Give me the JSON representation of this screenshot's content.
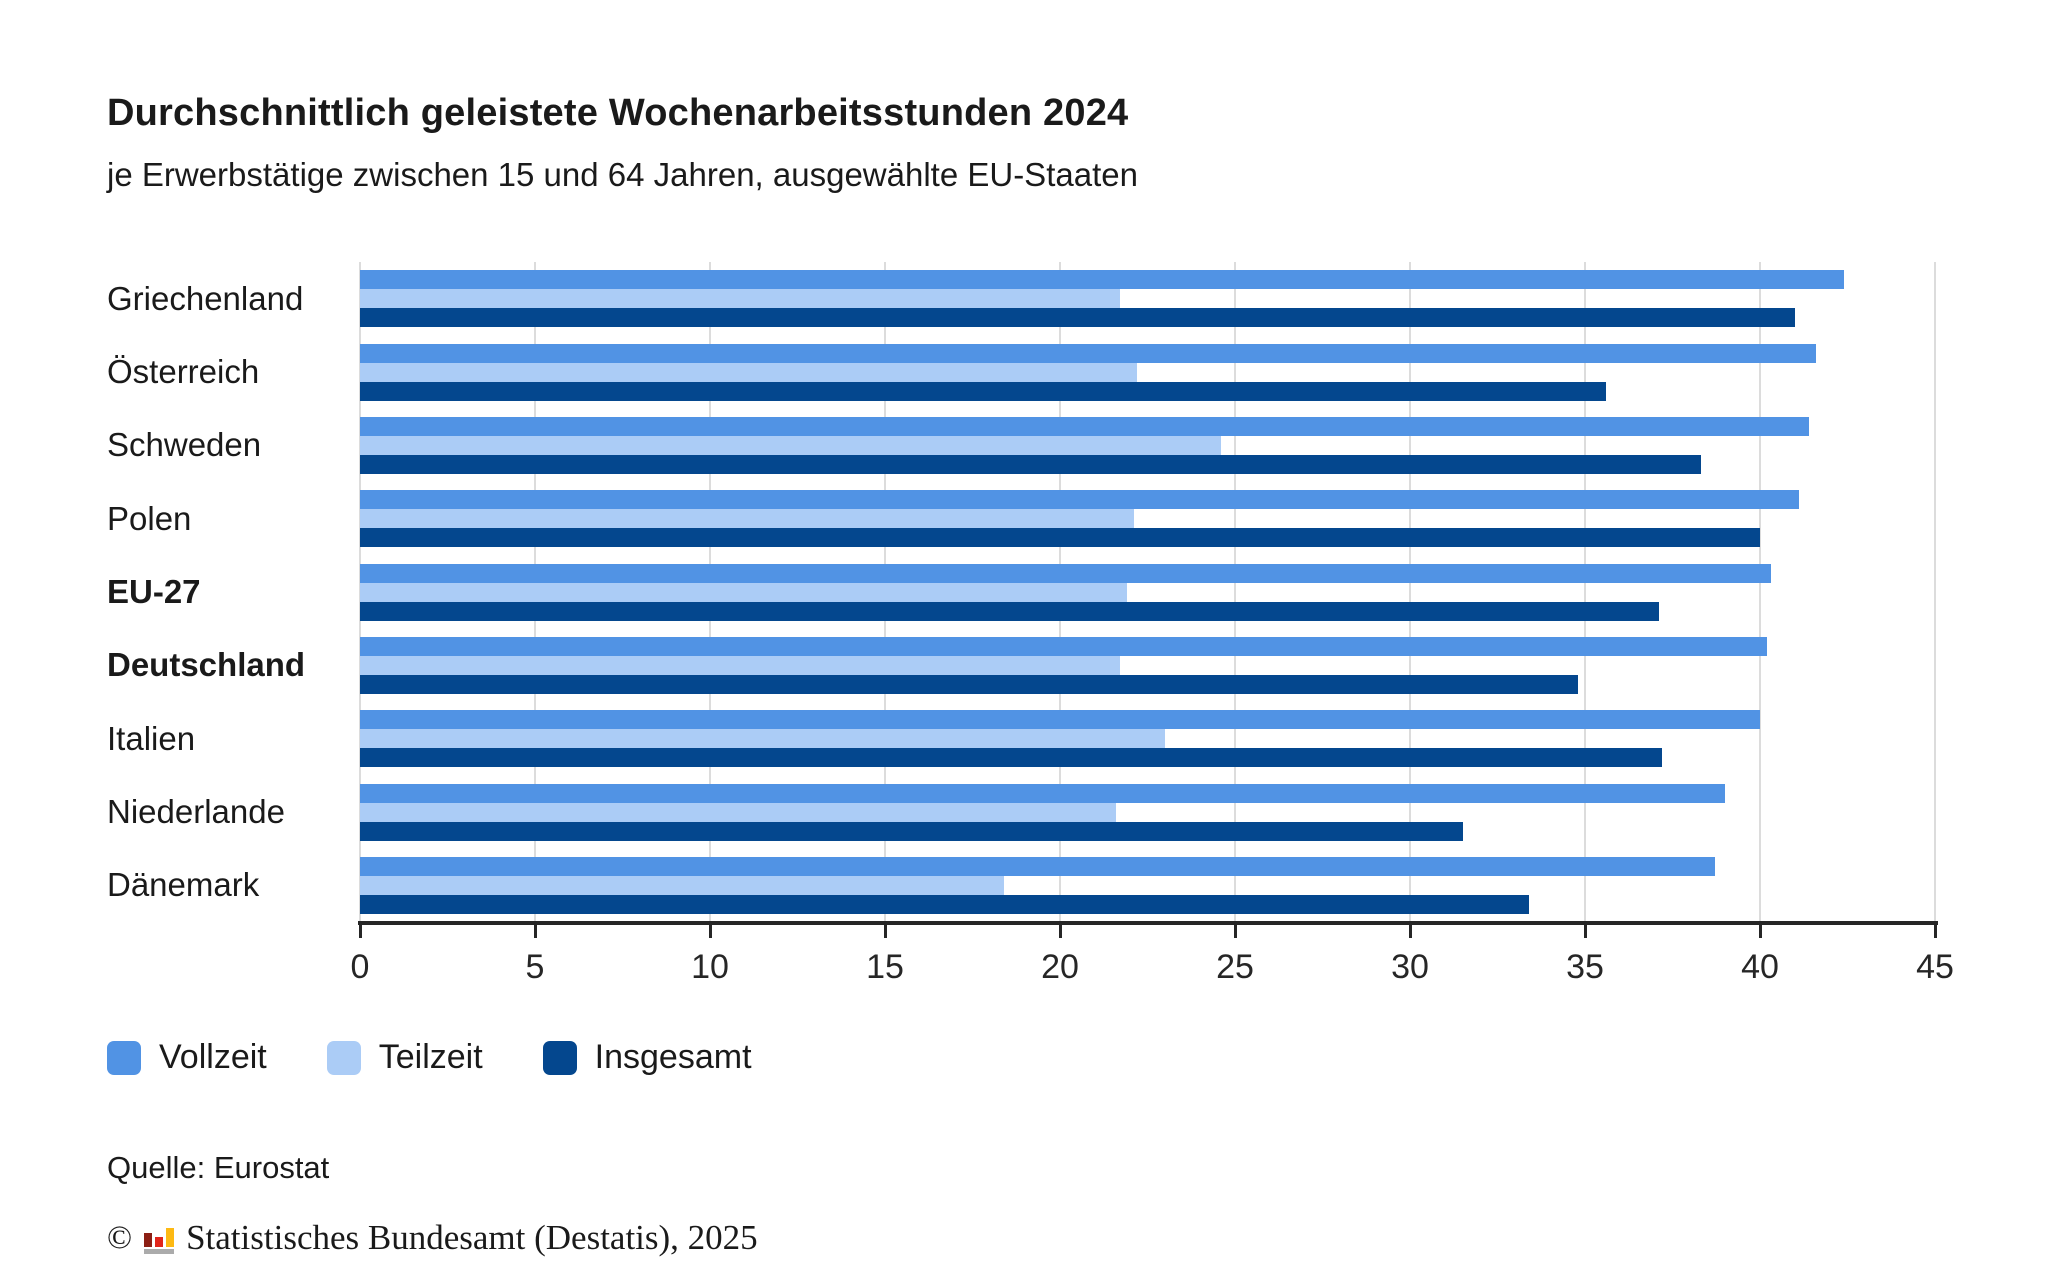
{
  "header": {
    "title": "Durchschnittlich geleistete Wochenarbeitsstunden 2024",
    "subtitle": "je Erwerbstätige zwischen 15 und 64 Jahren, ausgewählte EU-Staaten"
  },
  "chart_data": {
    "type": "bar",
    "orientation": "horizontal",
    "title": "Durchschnittlich geleistete Wochenarbeitsstunden 2024",
    "subtitle": "je Erwerbstätige zwischen 15 und 64 Jahren, ausgewählte EU-Staaten",
    "categories": [
      "Griechenland",
      "Österreich",
      "Schweden",
      "Polen",
      "EU-27",
      "Deutschland",
      "Italien",
      "Niederlande",
      "Dänemark"
    ],
    "bold_categories": [
      "EU-27",
      "Deutschland"
    ],
    "series": [
      {
        "name": "Vollzeit",
        "color": "#5193E4",
        "values": [
          42.4,
          41.6,
          41.4,
          41.1,
          40.3,
          40.2,
          40.0,
          39.0,
          38.7
        ]
      },
      {
        "name": "Teilzeit",
        "color": "#ABCCF6",
        "values": [
          21.7,
          22.2,
          24.6,
          22.1,
          21.9,
          21.7,
          23.0,
          21.6,
          18.4
        ]
      },
      {
        "name": "Insgesamt",
        "color": "#04478E",
        "values": [
          41.0,
          35.6,
          38.3,
          40.0,
          37.1,
          34.8,
          37.2,
          31.5,
          33.4
        ]
      }
    ],
    "xlabel": "",
    "ylabel": "",
    "xlim": [
      0,
      45
    ],
    "xticks": [
      0,
      5,
      10,
      15,
      20,
      25,
      30,
      35,
      40,
      45
    ],
    "grid": true,
    "gridline_color": "#dcdcdc",
    "legend_position": "bottom"
  },
  "legend": {
    "items": [
      {
        "label": "Vollzeit",
        "color": "#5193E4"
      },
      {
        "label": "Teilzeit",
        "color": "#ABCCF6"
      },
      {
        "label": "Insgesamt",
        "color": "#04478E"
      }
    ]
  },
  "footer": {
    "source": "Quelle: Eurostat",
    "copyright_symbol": "©",
    "copyright": "Statistisches Bundesamt (Destatis), 2025",
    "logo_colors": {
      "bar1": "#8C1F14",
      "bar2": "#E1251B",
      "bar3": "#FDB913",
      "base": "#ababab"
    }
  }
}
